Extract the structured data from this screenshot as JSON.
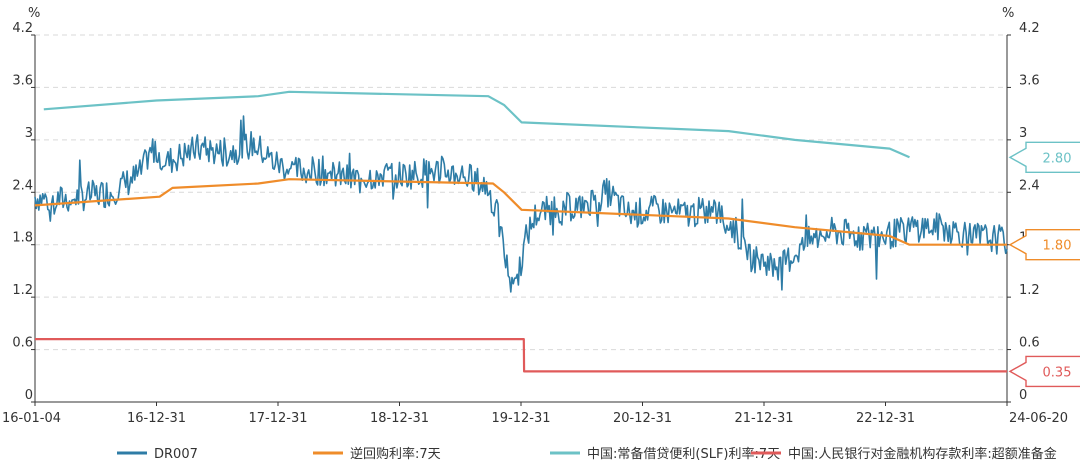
{
  "chart_data": {
    "type": "line",
    "unit_left": "%",
    "unit_right": "%",
    "y_ticks": [
      "0",
      "0.6",
      "1.2",
      "1.8",
      "2.4",
      "3",
      "3.6",
      "4.2"
    ],
    "ylim": [
      0,
      4.2
    ],
    "x_tick_labels": [
      "16-01-04",
      "16-12-31",
      "17-12-31",
      "18-12-31",
      "19-12-31",
      "20-12-31",
      "21-12-31",
      "22-12-31",
      "24-06-20"
    ],
    "x_range": [
      "2016-01-04",
      "2024-06-20"
    ],
    "grid": "horizontal dashed",
    "legend_position": "bottom",
    "series": [
      {
        "name": "DR007",
        "color": "#2e7ca6",
        "x": [
          "2016-01-04",
          "2016-03-01",
          "2016-06-01",
          "2016-09-01",
          "2016-12-01",
          "2017-01-15",
          "2017-03-01",
          "2017-06-01",
          "2017-09-01",
          "2017-12-01",
          "2018-02-01",
          "2018-04-01",
          "2018-07-01",
          "2018-10-01",
          "2019-01-01",
          "2019-04-01",
          "2019-07-01",
          "2019-10-01",
          "2019-12-15",
          "2020-01-15",
          "2020-02-15",
          "2020-03-15",
          "2020-04-15",
          "2020-05-15",
          "2020-07-01",
          "2020-10-01",
          "2020-12-31",
          "2021-03-01",
          "2021-06-01",
          "2021-09-01",
          "2021-12-01",
          "2022-02-01",
          "2022-04-01",
          "2022-07-01",
          "2022-10-01",
          "2022-12-15",
          "2023-03-01",
          "2023-06-01",
          "2023-09-01",
          "2023-12-01",
          "2024-03-01",
          "2024-06-20"
        ],
        "values": [
          2.35,
          2.3,
          2.35,
          2.4,
          2.6,
          2.9,
          2.75,
          2.9,
          2.85,
          2.95,
          2.75,
          2.65,
          2.65,
          2.55,
          2.6,
          2.6,
          2.65,
          2.6,
          2.45,
          2.1,
          1.5,
          1.4,
          1.9,
          2.15,
          2.2,
          2.25,
          2.4,
          2.15,
          2.2,
          2.15,
          2.2,
          2.0,
          1.65,
          1.55,
          1.85,
          1.95,
          1.9,
          1.9,
          2.0,
          2.0,
          1.9,
          1.85
        ]
      },
      {
        "name": "逆回购利率:7天",
        "color": "#ef8c2a",
        "x": [
          "2016-01-04",
          "2017-02-03",
          "2017-03-16",
          "2017-12-14",
          "2018-03-22",
          "2019-12-30",
          "2020-02-03",
          "2020-03-30",
          "2022-01-17",
          "2022-08-15",
          "2023-06-13",
          "2023-08-15",
          "2024-06-20"
        ],
        "values": [
          2.25,
          2.35,
          2.45,
          2.5,
          2.55,
          2.5,
          2.4,
          2.2,
          2.1,
          2.0,
          1.9,
          1.8,
          1.8
        ]
      },
      {
        "name": "中国:常备借贷便利(SLF)利率:7天",
        "color": "#6cc2c6",
        "x": [
          "2016-02-01",
          "2017-01-24",
          "2017-12-14",
          "2018-03-22",
          "2019-12-15",
          "2020-02-03",
          "2020-03-30",
          "2022-01-17",
          "2022-08-15",
          "2023-06-13",
          "2023-08-15"
        ],
        "values": [
          3.35,
          3.45,
          3.5,
          3.55,
          3.5,
          3.4,
          3.2,
          3.1,
          3.0,
          2.9,
          2.8
        ]
      },
      {
        "name": "中国:人民银行对金融机构存款利率:超额准备金",
        "color": "#e05a5a",
        "x": [
          "2016-01-04",
          "2020-04-06",
          "2020-04-07",
          "2024-06-20"
        ],
        "values": [
          0.72,
          0.72,
          0.35,
          0.35
        ]
      }
    ],
    "callouts": [
      {
        "value": 2.8,
        "label": "2.80",
        "color": "#6cc2c6"
      },
      {
        "value": 1.8,
        "label": "1.80",
        "color": "#ef8c2a"
      },
      {
        "value": 0.35,
        "label": "0.35",
        "color": "#e05a5a"
      }
    ]
  }
}
